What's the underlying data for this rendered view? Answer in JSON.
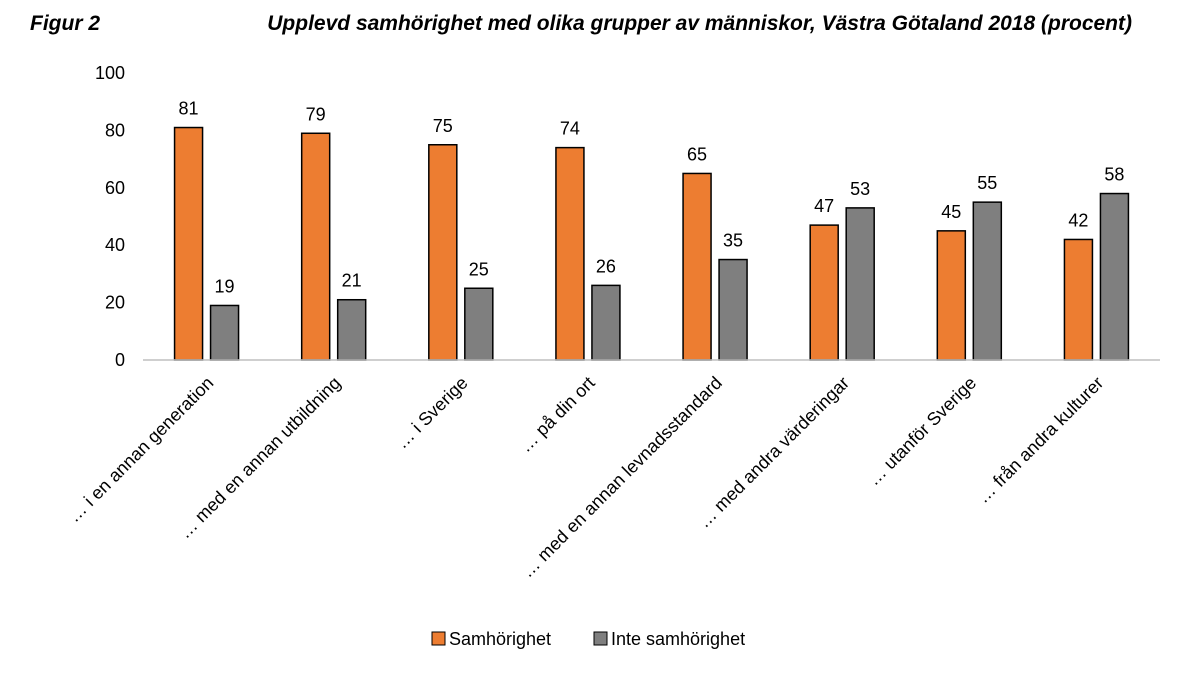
{
  "figure_label": "Figur 2",
  "chart_data": {
    "type": "bar",
    "title": "Upplevd samhörighet med olika grupper av människor, Västra Götaland 2018 (procent)",
    "xlabel": "",
    "ylabel": "",
    "ylim": [
      0,
      100
    ],
    "yticks": [
      "0",
      "20",
      "40",
      "60",
      "80",
      "100"
    ],
    "categories": [
      "… i en annan generation",
      "… med en annan utbildning",
      "… i Sverige",
      "… på din ort",
      "… med en annan levnadsstandard",
      "… med andra värderingar",
      "… utanför Sverige",
      "… från andra kulturer"
    ],
    "series": [
      {
        "name": "Samhörighet",
        "color": "#ED7D31",
        "values": [
          81,
          79,
          75,
          74,
          65,
          47,
          45,
          42
        ]
      },
      {
        "name": "Inte samhörighet",
        "color": "#7F7F7F",
        "values": [
          19,
          21,
          25,
          26,
          35,
          53,
          55,
          58
        ]
      }
    ],
    "grid": false,
    "legend_position": "bottom"
  }
}
